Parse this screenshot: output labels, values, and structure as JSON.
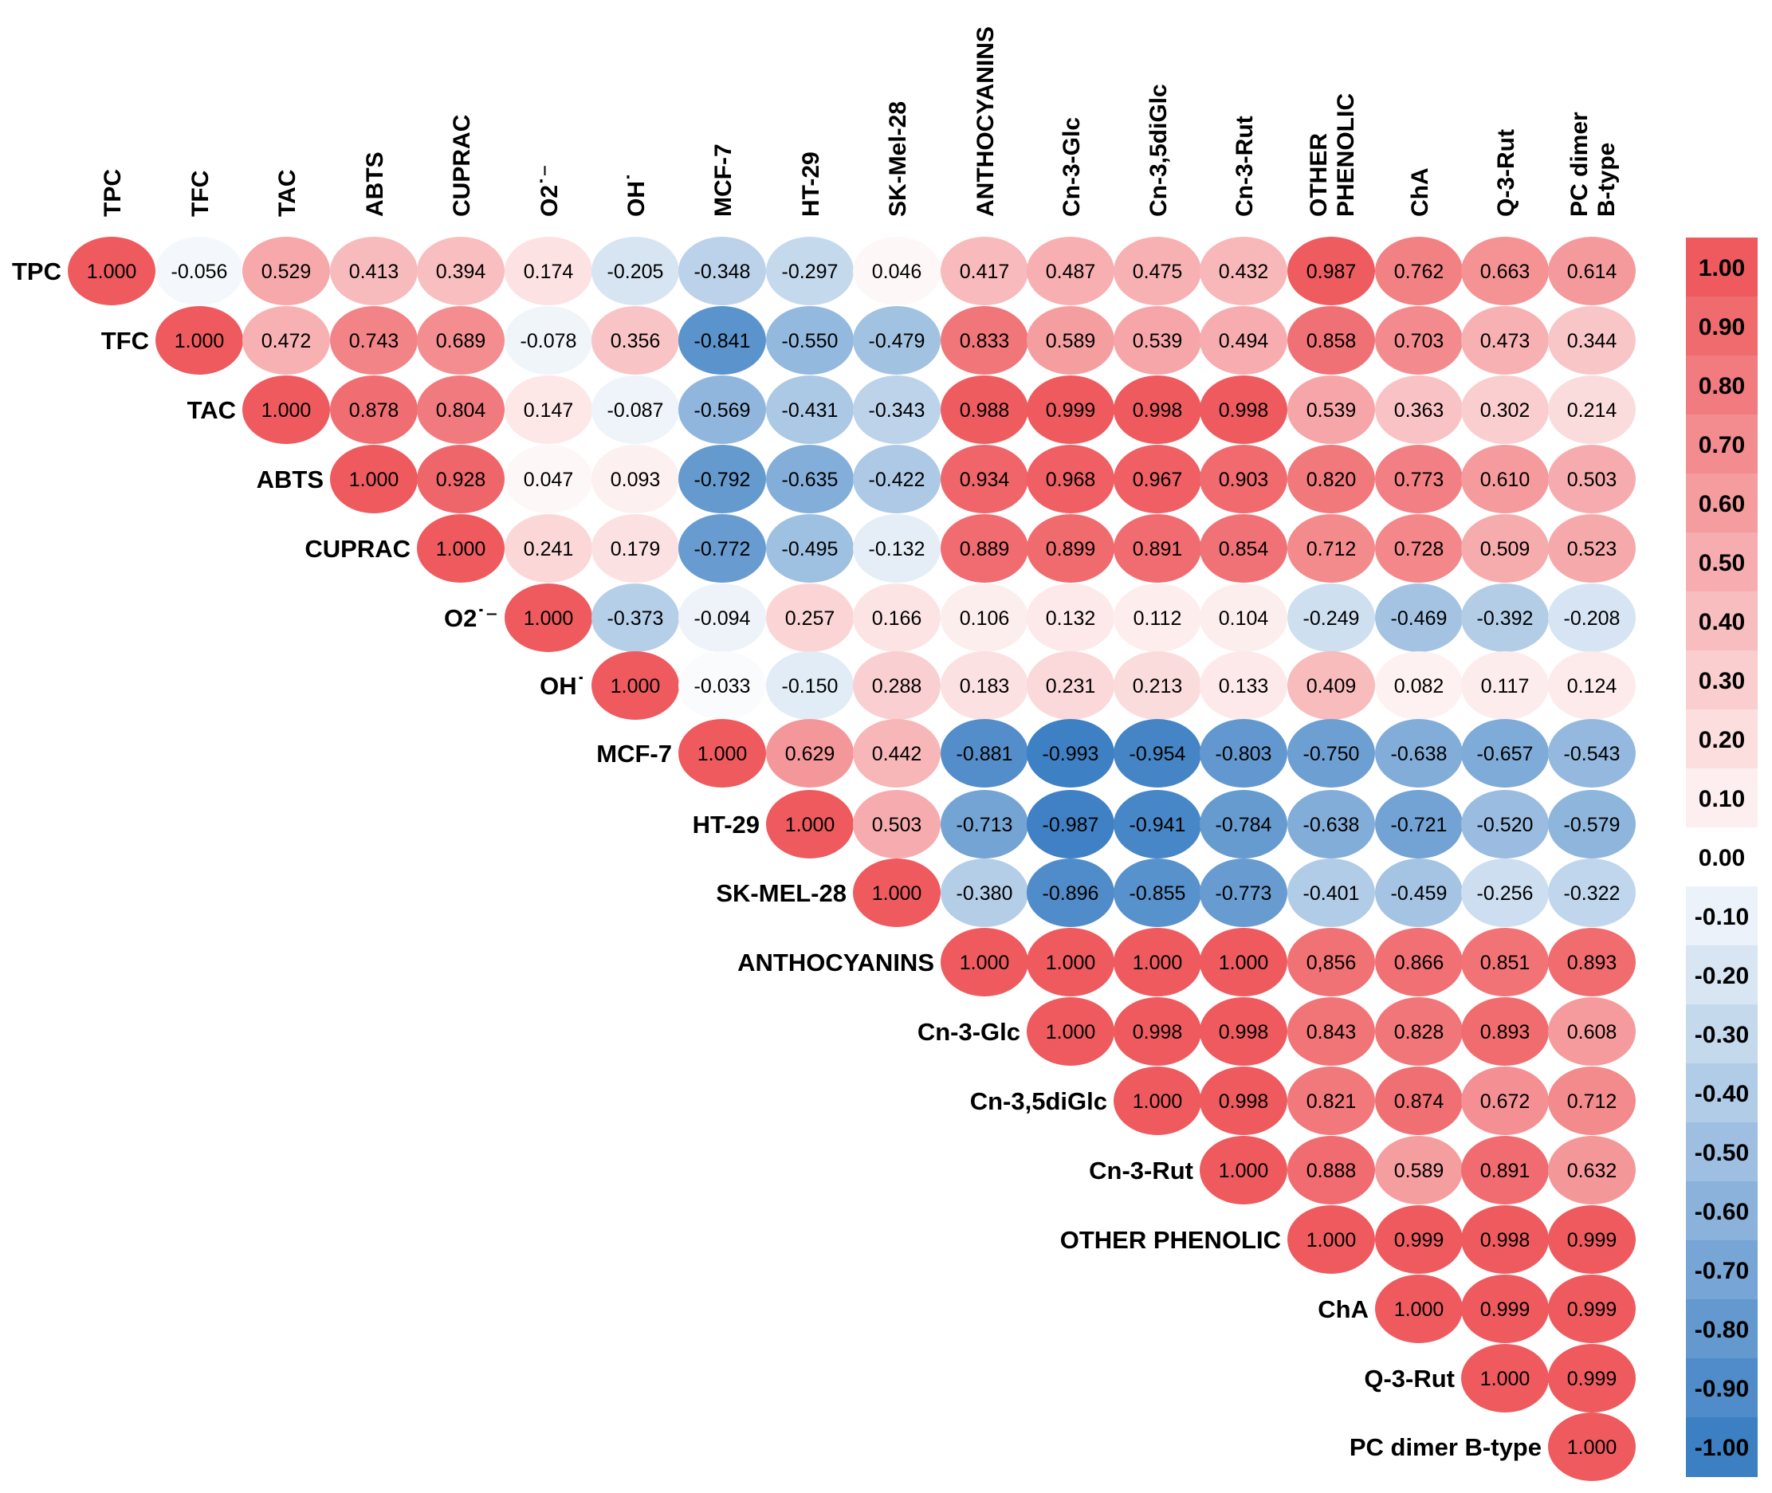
{
  "chart_data": {
    "type": "heatmap",
    "title": "",
    "labels": [
      {
        "col": "TPC",
        "row": "TPC"
      },
      {
        "col": "TFC",
        "row": "TFC"
      },
      {
        "col": "TAC",
        "row": "TAC"
      },
      {
        "col": "ABTS",
        "row": "ABTS"
      },
      {
        "col": "CUPRAC",
        "row": "CUPRAC"
      },
      {
        "col": "O2˙⁻",
        "row": "O2˙⁻"
      },
      {
        "col": "OH˙",
        "row": "OH˙"
      },
      {
        "col": "MCF-7",
        "row": "MCF-7"
      },
      {
        "col": "HT-29",
        "row": "HT-29"
      },
      {
        "col": "SK-Mel-28",
        "row": "SK-MEL-28"
      },
      {
        "col": "ANTHOCYANINS",
        "row": "ANTHOCYANINS"
      },
      {
        "col": "Cn-3-Glc",
        "row": "Cn-3-Glc"
      },
      {
        "col": "Cn-3,5diGlc",
        "row": "Cn-3,5diGlc"
      },
      {
        "col": "Cn-3-Rut",
        "row": "Cn-3-Rut"
      },
      {
        "col": "OTHER PHENOLIC",
        "row": "OTHER PHENOLIC"
      },
      {
        "col": "ChA",
        "row": "ChA"
      },
      {
        "col": "Q-3-Rut",
        "row": "Q-3-Rut"
      },
      {
        "col": "PC dimer B-type",
        "row": "PC dimer B-type"
      }
    ],
    "matrix": [
      [
        "1.000",
        "-0.056",
        "0.529",
        "0.413",
        "0.394",
        "0.174",
        "-0.205",
        "-0.348",
        "-0.297",
        "0.046",
        "0.417",
        "0.487",
        "0.475",
        "0.432",
        "0.987",
        "0.762",
        "0.663",
        "0.614"
      ],
      [
        "1.000",
        "0.472",
        "0.743",
        "0.689",
        "-0.078",
        "0.356",
        "-0.841",
        "-0.550",
        "-0.479",
        "0.833",
        "0.589",
        "0.539",
        "0.494",
        "0.858",
        "0.703",
        "0.473",
        "0.344"
      ],
      [
        "1.000",
        "0.878",
        "0.804",
        "0.147",
        "-0.087",
        "-0.569",
        "-0.431",
        "-0.343",
        "0.988",
        "0.999",
        "0.998",
        "0.998",
        "0.539",
        "0.363",
        "0.302",
        "0.214"
      ],
      [
        "1.000",
        "0.928",
        "0.047",
        "0.093",
        "-0.792",
        "-0.635",
        "-0.422",
        "0.934",
        "0.968",
        "0.967",
        "0.903",
        "0.820",
        "0.773",
        "0.610",
        "0.503"
      ],
      [
        "1.000",
        "0.241",
        "0.179",
        "-0.772",
        "-0.495",
        "-0.132",
        "0.889",
        "0.899",
        "0.891",
        "0.854",
        "0.712",
        "0.728",
        "0.509",
        "0.523"
      ],
      [
        "1.000",
        "-0.373",
        "-0.094",
        "0.257",
        "0.166",
        "0.106",
        "0.132",
        "0.112",
        "0.104",
        "-0.249",
        "-0.469",
        "-0.392",
        "-0.208"
      ],
      [
        "1.000",
        "-0.033",
        "-0.150",
        "0.288",
        "0.183",
        "0.231",
        "0.213",
        "0.133",
        "0.409",
        "0.082",
        "0.117",
        "0.124"
      ],
      [
        "1.000",
        "0.629",
        "0.442",
        "-0.881",
        "-0.993",
        "-0.954",
        "-0.803",
        "-0.750",
        "-0.638",
        "-0.657",
        "-0.543"
      ],
      [
        "1.000",
        "0.503",
        "-0.713",
        "-0.987",
        "-0.941",
        "-0.784",
        "-0.638",
        "-0.721",
        "-0.520",
        "-0.579"
      ],
      [
        "1.000",
        "-0.380",
        "-0.896",
        "-0.855",
        "-0.773",
        "-0.401",
        "-0.459",
        "-0.256",
        "-0.322"
      ],
      [
        "1.000",
        "1.000",
        "1.000",
        "1.000",
        "0,856",
        "0.866",
        "0.851",
        "0.893"
      ],
      [
        "1.000",
        "0.998",
        "0.998",
        "0.843",
        "0.828",
        "0.893",
        "0.608"
      ],
      [
        "1.000",
        "0.998",
        "0.821",
        "0.874",
        "0.672",
        "0.712"
      ],
      [
        "1.000",
        "0.888",
        "0.589",
        "0.891",
        "0.632"
      ],
      [
        "1.000",
        "0.999",
        "0.998",
        "0.999"
      ],
      [
        "1.000",
        "0.999",
        "0.999"
      ],
      [
        "1.000",
        "0.999"
      ],
      [
        "1.000"
      ]
    ],
    "legend": {
      "ticks": [
        "1.00",
        "0.90",
        "0.80",
        "0.70",
        "0.60",
        "0.50",
        "0.40",
        "0.30",
        "0.20",
        "0.10",
        "0.00",
        "-0.10",
        "-0.20",
        "-0.30",
        "-0.40",
        "-0.50",
        "-0.60",
        "-0.70",
        "-0.80",
        "-0.90",
        "-1.00"
      ],
      "range": [
        -1,
        1
      ],
      "placement": "right"
    },
    "colors": {
      "positive": "#ee5a5e",
      "negative": "#3c7fc3",
      "neutral": "#ffffff",
      "text": "#000000"
    }
  }
}
